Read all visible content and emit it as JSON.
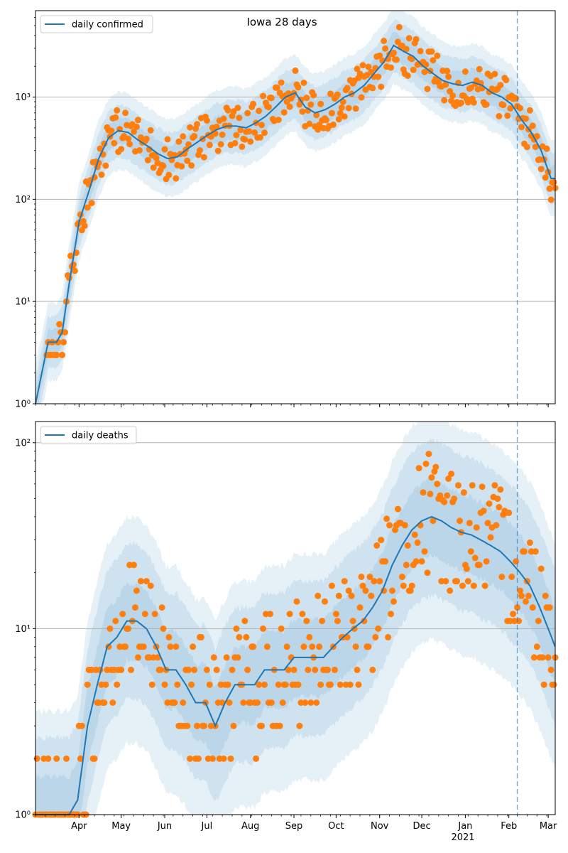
{
  "chart_data": [
    {
      "type": "line",
      "title": "Iowa 28 days",
      "yscale": "log",
      "ylim": [
        1,
        7000
      ],
      "y_ticks": [
        {
          "value": 1,
          "label": "10⁰"
        },
        {
          "value": 10,
          "label": "10¹"
        },
        {
          "value": 100,
          "label": "10²"
        },
        {
          "value": 1000,
          "label": "10³"
        }
      ],
      "grid": "horizontal",
      "legend_position": "top-left",
      "series": [
        {
          "name": "daily confirmed",
          "role": "model-mean",
          "color": "#1f77b4",
          "x": [
            "2020-03-01",
            "2020-03-10",
            "2020-03-16",
            "2020-03-20",
            "2020-03-25",
            "2020-04-01",
            "2020-04-08",
            "2020-04-15",
            "2020-04-22",
            "2020-04-29",
            "2020-05-06",
            "2020-05-13",
            "2020-05-20",
            "2020-05-27",
            "2020-06-03",
            "2020-06-10",
            "2020-06-17",
            "2020-06-24",
            "2020-07-01",
            "2020-07-08",
            "2020-07-15",
            "2020-07-22",
            "2020-07-29",
            "2020-08-05",
            "2020-08-12",
            "2020-08-19",
            "2020-08-26",
            "2020-09-02",
            "2020-09-09",
            "2020-09-16",
            "2020-09-23",
            "2020-09-30",
            "2020-10-07",
            "2020-10-14",
            "2020-10-21",
            "2020-10-28",
            "2020-11-04",
            "2020-11-11",
            "2020-11-18",
            "2020-11-25",
            "2020-12-02",
            "2020-12-09",
            "2020-12-16",
            "2020-12-23",
            "2020-12-30",
            "2021-01-06",
            "2021-01-13",
            "2021-01-20",
            "2021-01-27",
            "2021-02-03",
            "2021-02-10",
            "2021-02-17",
            "2021-02-24",
            "2021-03-03"
          ],
          "y": [
            1,
            4,
            4,
            5,
            15,
            60,
            120,
            250,
            400,
            470,
            450,
            380,
            330,
            280,
            250,
            260,
            310,
            360,
            420,
            480,
            520,
            520,
            500,
            560,
            650,
            800,
            1000,
            1100,
            800,
            700,
            750,
            850,
            1000,
            1100,
            1300,
            1700,
            2200,
            3200,
            2800,
            2500,
            2000,
            1700,
            1450,
            1350,
            1300,
            1400,
            1300,
            1100,
            1000,
            850,
            600,
            450,
            300,
            160
          ]
        },
        {
          "name": "daily deaths",
          "role": "model-mean",
          "color": "#1f77b4",
          "x": [
            "2020-03-01",
            "2020-03-20",
            "2020-03-25",
            "2020-03-31",
            "2020-04-07",
            "2020-04-14",
            "2020-04-21",
            "2020-04-28",
            "2020-05-05",
            "2020-05-12",
            "2020-05-19",
            "2020-05-26",
            "2020-06-02",
            "2020-06-09",
            "2020-06-16",
            "2020-06-23",
            "2020-06-30",
            "2020-07-07",
            "2020-07-14",
            "2020-07-21",
            "2020-07-28",
            "2020-08-04",
            "2020-08-11",
            "2020-08-18",
            "2020-08-25",
            "2020-09-01",
            "2020-09-08",
            "2020-09-15",
            "2020-09-22",
            "2020-09-29",
            "2020-10-06",
            "2020-10-13",
            "2020-10-20",
            "2020-10-27",
            "2020-11-03",
            "2020-11-10",
            "2020-11-17",
            "2020-11-24",
            "2020-12-01",
            "2020-12-08",
            "2020-12-15",
            "2020-12-22",
            "2020-12-29",
            "2021-01-05",
            "2021-01-12",
            "2021-01-19",
            "2021-01-26",
            "2021-02-02",
            "2021-02-09",
            "2021-02-16",
            "2021-02-23",
            "2021-03-01",
            "2021-03-06"
          ],
          "y": [
            1,
            1,
            1,
            1.2,
            3,
            5,
            8,
            9,
            11,
            11,
            10,
            8,
            6,
            6,
            5,
            4,
            4,
            3,
            4,
            5,
            5,
            5,
            6,
            6,
            6,
            7,
            7,
            7,
            7,
            8,
            9,
            10,
            11,
            13,
            16,
            22,
            28,
            34,
            38,
            40,
            38,
            35,
            33,
            32,
            30,
            28,
            26,
            23,
            20,
            17,
            13,
            10,
            8
          ]
        }
      ]
    },
    {
      "type": "line",
      "title": "",
      "yscale": "log",
      "ylim": [
        1,
        130
      ],
      "y_ticks": [
        {
          "value": 1,
          "label": "10⁰"
        },
        {
          "value": 10,
          "label": "10¹"
        },
        {
          "value": 100,
          "label": "10²"
        }
      ],
      "x_ticks": [
        {
          "date": "2020-04-01",
          "label": "Apr"
        },
        {
          "date": "2020-05-01",
          "label": "May"
        },
        {
          "date": "2020-06-01",
          "label": "Jun"
        },
        {
          "date": "2020-07-01",
          "label": "Jul"
        },
        {
          "date": "2020-08-01",
          "label": "Aug"
        },
        {
          "date": "2020-09-01",
          "label": "Sep"
        },
        {
          "date": "2020-10-01",
          "label": "Oct"
        },
        {
          "date": "2020-11-01",
          "label": "Nov"
        },
        {
          "date": "2020-12-01",
          "label": "Dec"
        },
        {
          "date": "2021-01-01",
          "label": "Jan"
        },
        {
          "date": "2021-02-01",
          "label": "Feb"
        },
        {
          "date": "2021-03-01",
          "label": "Mar"
        }
      ],
      "x_year_label": "2021",
      "xlim": [
        "2020-03-01",
        "2021-03-06"
      ],
      "grid": "horizontal",
      "legend_position": "top-left",
      "vertical_marker_date": "2021-02-07",
      "colors": {
        "model": "#1f77b4",
        "observed": "#ff7f0e",
        "band": "#1f77b4",
        "marker": "#1f77b4"
      }
    }
  ],
  "legend": {
    "top": "daily confirmed",
    "bottom": "daily deaths"
  }
}
